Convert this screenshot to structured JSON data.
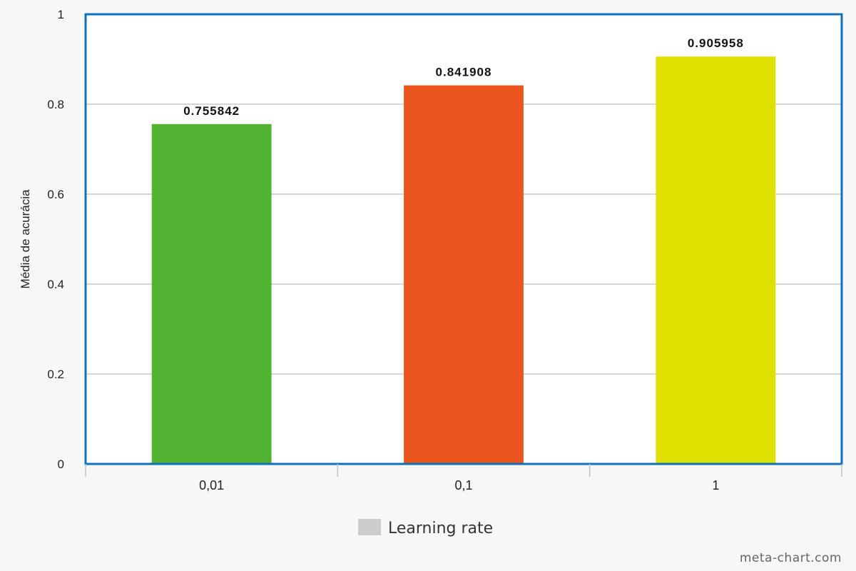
{
  "chart_data": {
    "type": "bar",
    "categories": [
      "0,01",
      "0,1",
      "1"
    ],
    "values": [
      0.755842,
      0.841908,
      0.905958
    ],
    "value_labels": [
      "0.755842",
      "0.841908",
      "0.905958"
    ],
    "colors": [
      "#52b332",
      "#eb561e",
      "#dfe000"
    ],
    "ylabel": "Média de acurácia",
    "xlabel": "",
    "ylim": [
      0,
      1
    ],
    "yticks": [
      0,
      0.2,
      0.4,
      0.6,
      0.8,
      1
    ],
    "ytick_labels": [
      "0",
      "0.2",
      "0.4",
      "0.6",
      "0.8",
      "1"
    ],
    "grid": true,
    "legend": {
      "label": "Learning rate",
      "swatch_color": "#cccccc",
      "placement": "bottom-center"
    },
    "plot_border_color": "#1070b8"
  },
  "watermark": "meta-chart.com"
}
